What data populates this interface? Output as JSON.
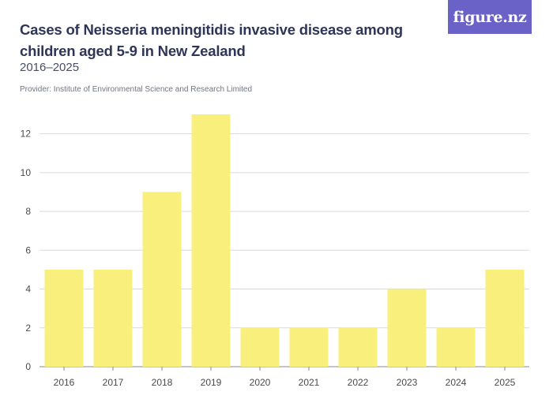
{
  "header": {
    "title": "Cases of Neisseria meningitidis invasive disease among children aged 5-9 in New Zealand",
    "subtitle": "2016–2025",
    "provider": "Provider: Institute of Environmental Science and Research Limited"
  },
  "logo": {
    "text": "figure.nz"
  },
  "colors": {
    "bar": "#f8ef7c",
    "logo_bg": "#6a62c6",
    "title": "#2e3557"
  },
  "chart_data": {
    "type": "bar",
    "title": "Cases of Neisseria meningitidis invasive disease among children aged 5-9 in New Zealand",
    "subtitle": "2016–2025",
    "categories": [
      "2016",
      "2017",
      "2018",
      "2019",
      "2020",
      "2021",
      "2022",
      "2023",
      "2024",
      "2025"
    ],
    "values": [
      5,
      5,
      9,
      13,
      2,
      2,
      2,
      4,
      2,
      5
    ],
    "xlabel": "",
    "ylabel": "",
    "ylim": [
      0,
      13
    ],
    "yticks": [
      0,
      2,
      4,
      6,
      8,
      10,
      12
    ],
    "grid": true,
    "legend": "none"
  }
}
